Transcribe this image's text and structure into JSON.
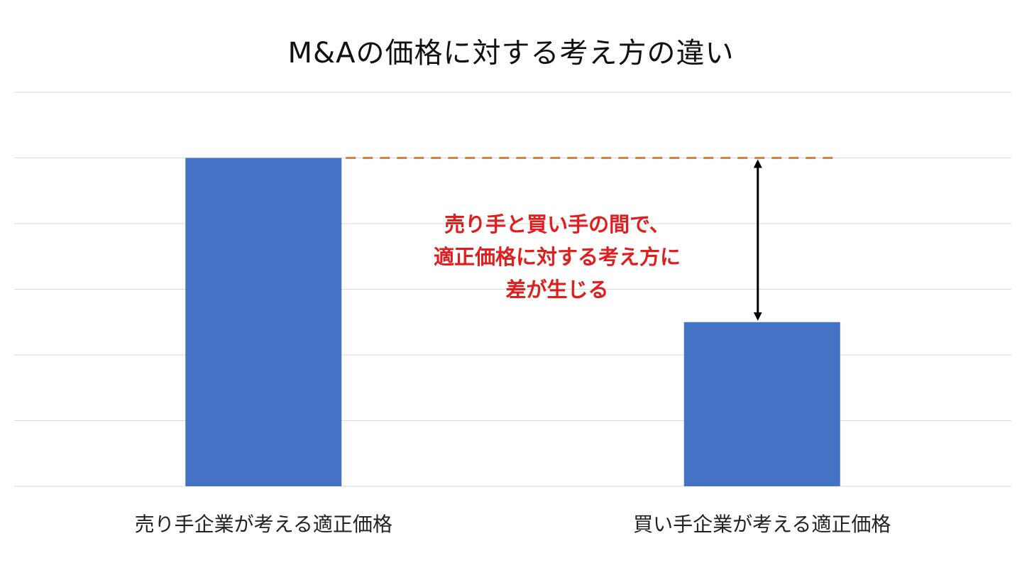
{
  "chart_data": {
    "type": "bar",
    "title": "M&Aの価格に対する考え方の違い",
    "categories": [
      "売り手企業が考える適正価格",
      "買い手企業が考える適正価格"
    ],
    "values": [
      5,
      2.5
    ],
    "ylim": [
      0,
      6
    ],
    "grid": true,
    "legend": "none",
    "annotation": {
      "lines": [
        "売り手と買い手の間で、",
        "適正価格に対する考え方に",
        "差が生じる"
      ],
      "color": "#e11e1e"
    },
    "reference_line": {
      "value": 5,
      "color": "#d9843b",
      "style": "dashed"
    },
    "gap_arrow": {
      "from": 2.5,
      "to": 5
    }
  },
  "colors": {
    "bar": "#4472c4",
    "grid": "#d9d9d9",
    "arrow": "#000000"
  }
}
